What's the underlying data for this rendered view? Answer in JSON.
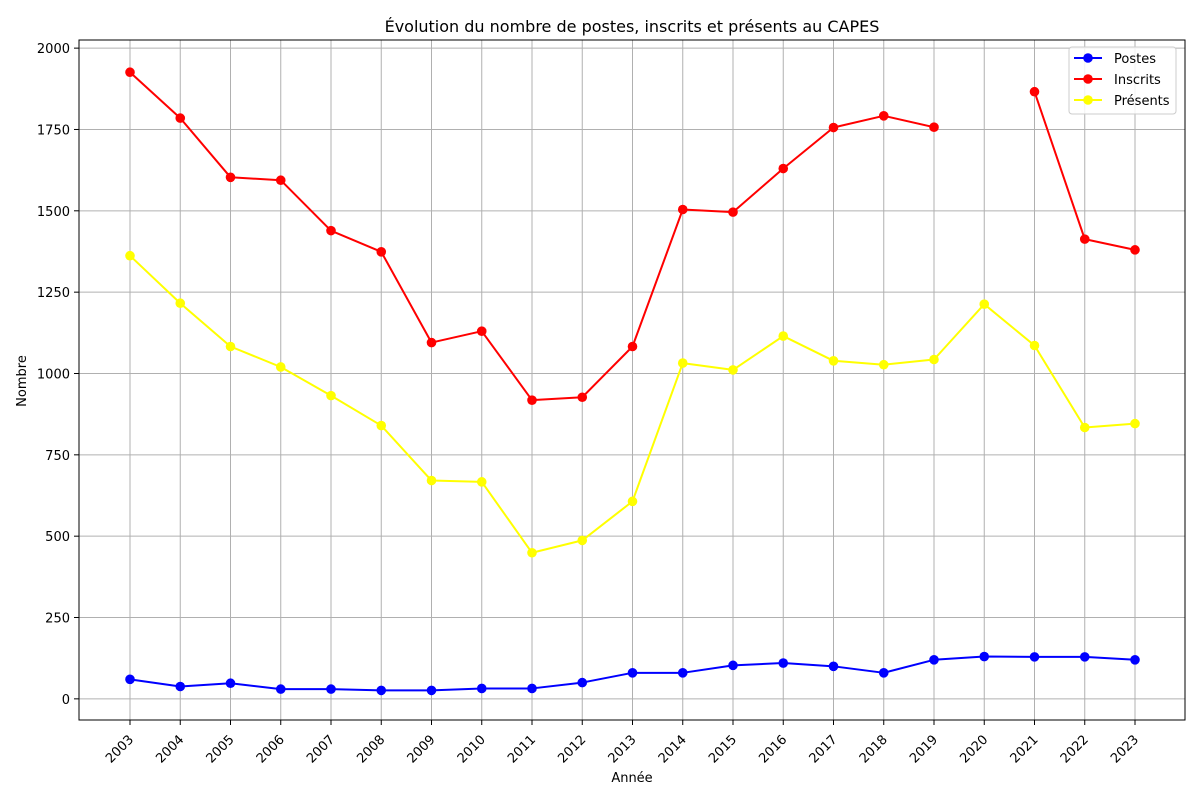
{
  "chart_data": {
    "type": "line",
    "title": "Évolution du nombre de postes, inscrits et présents au CAPES",
    "xlabel": "Année",
    "ylabel": "Nombre",
    "x": [
      "2003",
      "2004",
      "2005",
      "2006",
      "2007",
      "2008",
      "2009",
      "2010",
      "2011",
      "2012",
      "2013",
      "2014",
      "2015",
      "2016",
      "2017",
      "2018",
      "2019",
      "2020",
      "2021",
      "2022",
      "2023"
    ],
    "ylim": [
      -65,
      2025
    ],
    "yticks": [
      0,
      250,
      500,
      750,
      1000,
      1250,
      1500,
      1750,
      2000
    ],
    "grid": true,
    "legend_position": "top-right",
    "series": [
      {
        "name": "Postes",
        "color": "#0000ff",
        "values": [
          60,
          38,
          48,
          30,
          30,
          26,
          26,
          32,
          32,
          50,
          80,
          80,
          103,
          110,
          100,
          80,
          120,
          130,
          129,
          129,
          120
        ]
      },
      {
        "name": "Inscrits",
        "color": "#ff0000",
        "values": [
          1926,
          1785,
          1603,
          1594,
          1439,
          1374,
          1095,
          1130,
          918,
          927,
          1083,
          1504,
          1496,
          1630,
          1756,
          1792,
          1757,
          null,
          1866,
          1413,
          1380
        ]
      },
      {
        "name": "Présents",
        "color": "#ffff00",
        "values": [
          1362,
          1216,
          1083,
          1020,
          932,
          840,
          671,
          667,
          449,
          487,
          607,
          1032,
          1011,
          1115,
          1039,
          1027,
          1043,
          1213,
          1086,
          834,
          846
        ]
      }
    ]
  }
}
